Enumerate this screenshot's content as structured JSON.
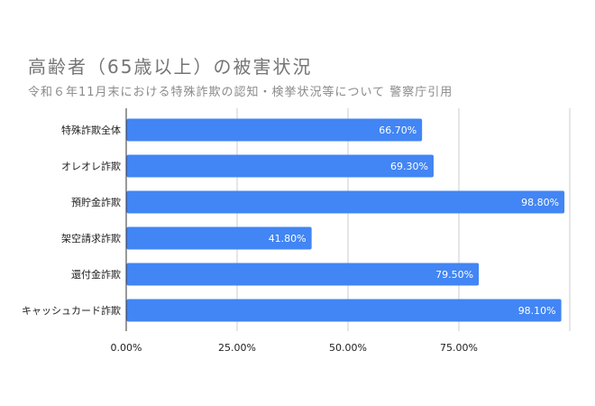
{
  "chart_data": {
    "type": "bar",
    "orientation": "horizontal",
    "title": "高齢者（65歳以上）の被害状況",
    "subtitle": "令和６年11月末における特殊詐欺の認知・検挙状況等について 警察庁引用",
    "categories": [
      "特殊詐欺全体",
      "オレオレ詐欺",
      "預貯金詐欺",
      "架空請求詐欺",
      "還付金詐欺",
      "キャッシュカード詐欺"
    ],
    "values": [
      66.7,
      69.3,
      98.8,
      41.8,
      79.5,
      98.1
    ],
    "data_labels": [
      "66.70%",
      "69.30%",
      "98.80%",
      "41.80%",
      "79.50%",
      "98.10%"
    ],
    "xticks": [
      0,
      25,
      50,
      75
    ],
    "xtick_labels": [
      "0.00%",
      "25.00%",
      "50.00%",
      "75.00%"
    ],
    "xlim": [
      0,
      100
    ],
    "grid": true,
    "legend": "none",
    "bar_color": "#4285f4",
    "grid_color": "#cccccc"
  }
}
